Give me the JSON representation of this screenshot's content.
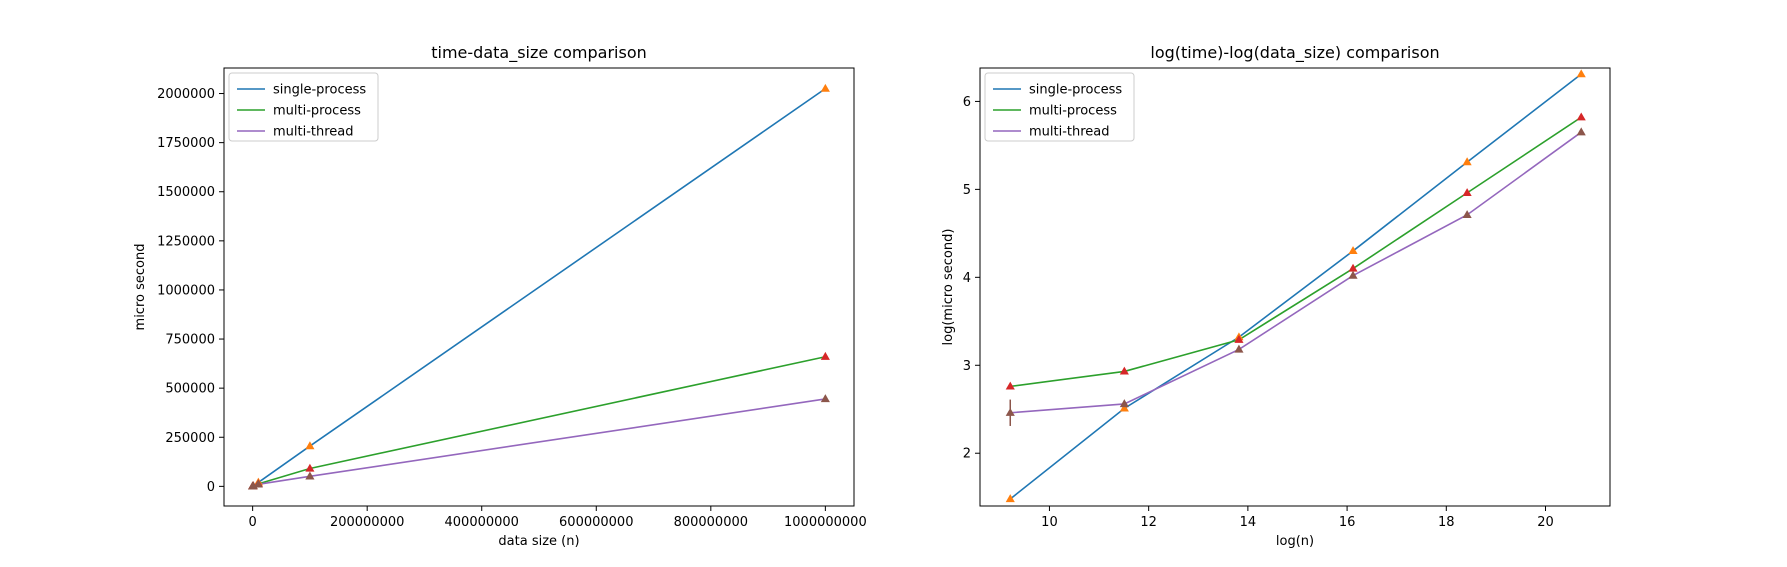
{
  "chart_data": [
    {
      "type": "line",
      "title": "time-data_size comparison",
      "xlabel": "data size (n)",
      "ylabel": "micro second",
      "xlim": [
        -50000000,
        1050000000
      ],
      "ylim": [
        -100000,
        2130000
      ],
      "xticks": [
        0,
        200000000,
        400000000,
        600000000,
        800000000,
        1000000000
      ],
      "xtick_labels": [
        "0",
        "200000000",
        "400000000",
        "600000000",
        "800000000",
        "1000000000"
      ],
      "yticks": [
        0,
        250000,
        500000,
        750000,
        1000000,
        1250000,
        1500000,
        1750000,
        2000000
      ],
      "ytick_labels": [
        "0",
        "250000",
        "500000",
        "750000",
        "1000000",
        "1250000",
        "1500000",
        "1750000",
        "2000000"
      ],
      "grid": false,
      "legend_position": "top-left",
      "x": [
        10000,
        100000,
        1000000,
        10000000,
        100000000,
        1000000000
      ],
      "series": [
        {
          "name": "single-process",
          "color": "#1f77b4",
          "marker_color": "#ff7f0e",
          "values": [
            30,
            320,
            2100,
            20000,
            205000,
            2025000
          ]
        },
        {
          "name": "multi-process",
          "color": "#2ca02c",
          "marker_color": "#d62728",
          "values": [
            570,
            860,
            1950,
            12500,
            91000,
            660000
          ]
        },
        {
          "name": "multi-thread",
          "color": "#9467bd",
          "marker_color": "#8c564b",
          "values": [
            290,
            360,
            1500,
            10400,
            51000,
            445000
          ]
        }
      ]
    },
    {
      "type": "line",
      "title": "log(time)-log(data_size) comparison",
      "xlabel": "log(n)",
      "ylabel": "log(micro second)",
      "xlim": [
        8.6,
        21.3
      ],
      "ylim": [
        1.4,
        6.38
      ],
      "xticks": [
        10,
        12,
        14,
        16,
        18,
        20
      ],
      "xtick_labels": [
        "10",
        "12",
        "14",
        "16",
        "18",
        "20"
      ],
      "yticks": [
        2,
        3,
        4,
        5,
        6
      ],
      "ytick_labels": [
        "2",
        "3",
        "4",
        "5",
        "6"
      ],
      "grid": false,
      "legend_position": "top-left",
      "x": [
        9.21,
        11.51,
        13.82,
        16.12,
        18.42,
        20.72
      ],
      "series": [
        {
          "name": "single-process",
          "color": "#1f77b4",
          "marker_color": "#ff7f0e",
          "values": [
            1.48,
            2.51,
            3.32,
            4.3,
            5.31,
            6.31
          ]
        },
        {
          "name": "multi-process",
          "color": "#2ca02c",
          "marker_color": "#d62728",
          "values": [
            2.76,
            2.93,
            3.29,
            4.1,
            4.96,
            5.82
          ]
        },
        {
          "name": "multi-thread",
          "color": "#9467bd",
          "marker_color": "#8c564b",
          "values": [
            2.46,
            2.56,
            3.18,
            4.02,
            4.71,
            5.65
          ]
        }
      ],
      "error_bars": [
        {
          "series": "multi-thread",
          "point_index": 0,
          "low": 2.31,
          "high": 2.61
        }
      ]
    }
  ]
}
